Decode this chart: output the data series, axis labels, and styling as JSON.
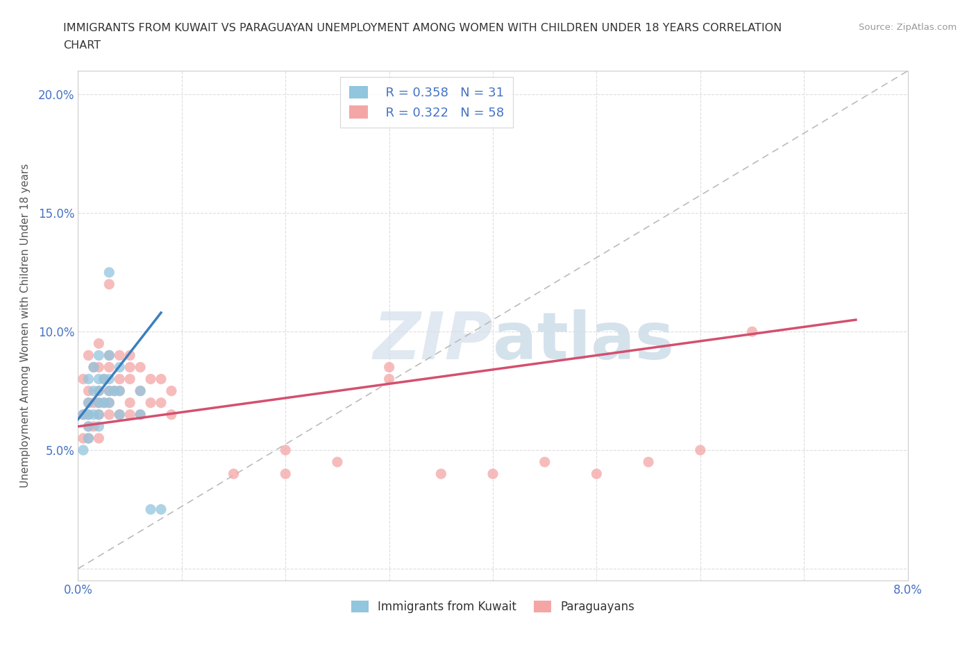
{
  "title": "IMMIGRANTS FROM KUWAIT VS PARAGUAYAN UNEMPLOYMENT AMONG WOMEN WITH CHILDREN UNDER 18 YEARS CORRELATION\nCHART",
  "source": "Source: ZipAtlas.com",
  "ylabel": "Unemployment Among Women with Children Under 18 years",
  "xlim": [
    0.0,
    0.08
  ],
  "ylim": [
    -0.005,
    0.21
  ],
  "xticks": [
    0.0,
    0.01,
    0.02,
    0.03,
    0.04,
    0.05,
    0.06,
    0.07,
    0.08
  ],
  "yticks": [
    0.0,
    0.05,
    0.1,
    0.15,
    0.2
  ],
  "xtick_labels": [
    "0.0%",
    "",
    "",
    "",
    "",
    "",
    "",
    "",
    "8.0%"
  ],
  "ytick_labels": [
    "",
    "5.0%",
    "10.0%",
    "15.0%",
    "20.0%"
  ],
  "legend_blue_r": "R = 0.358",
  "legend_blue_n": "N = 31",
  "legend_pink_r": "R = 0.322",
  "legend_pink_n": "N = 58",
  "series1_color": "#92c5de",
  "series2_color": "#f4a6a6",
  "trendline1_color": "#3a7fbf",
  "trendline2_color": "#d44f6e",
  "background_color": "#ffffff",
  "series1_x": [
    0.0005,
    0.0005,
    0.001,
    0.001,
    0.001,
    0.001,
    0.001,
    0.0015,
    0.0015,
    0.0015,
    0.002,
    0.002,
    0.002,
    0.002,
    0.002,
    0.002,
    0.0025,
    0.0025,
    0.003,
    0.003,
    0.003,
    0.003,
    0.003,
    0.0035,
    0.004,
    0.004,
    0.004,
    0.006,
    0.006,
    0.007,
    0.008
  ],
  "series1_y": [
    0.065,
    0.05,
    0.055,
    0.06,
    0.065,
    0.07,
    0.08,
    0.065,
    0.075,
    0.085,
    0.06,
    0.065,
    0.07,
    0.075,
    0.08,
    0.09,
    0.07,
    0.08,
    0.07,
    0.075,
    0.08,
    0.09,
    0.125,
    0.075,
    0.065,
    0.075,
    0.085,
    0.065,
    0.075,
    0.025,
    0.025
  ],
  "series2_x": [
    0.0005,
    0.0005,
    0.0005,
    0.001,
    0.001,
    0.001,
    0.001,
    0.001,
    0.001,
    0.0015,
    0.0015,
    0.0015,
    0.002,
    0.002,
    0.002,
    0.002,
    0.002,
    0.002,
    0.0025,
    0.0025,
    0.003,
    0.003,
    0.003,
    0.003,
    0.003,
    0.003,
    0.0035,
    0.004,
    0.004,
    0.004,
    0.004,
    0.005,
    0.005,
    0.005,
    0.005,
    0.005,
    0.006,
    0.006,
    0.006,
    0.007,
    0.007,
    0.008,
    0.008,
    0.009,
    0.009,
    0.015,
    0.02,
    0.02,
    0.025,
    0.03,
    0.03,
    0.035,
    0.04,
    0.045,
    0.05,
    0.055,
    0.06,
    0.065
  ],
  "series2_y": [
    0.055,
    0.065,
    0.08,
    0.055,
    0.06,
    0.065,
    0.07,
    0.075,
    0.09,
    0.06,
    0.07,
    0.085,
    0.055,
    0.065,
    0.07,
    0.075,
    0.085,
    0.095,
    0.07,
    0.08,
    0.065,
    0.07,
    0.075,
    0.085,
    0.09,
    0.12,
    0.075,
    0.065,
    0.075,
    0.08,
    0.09,
    0.065,
    0.07,
    0.08,
    0.085,
    0.09,
    0.065,
    0.075,
    0.085,
    0.07,
    0.08,
    0.07,
    0.08,
    0.065,
    0.075,
    0.04,
    0.04,
    0.05,
    0.045,
    0.08,
    0.085,
    0.04,
    0.04,
    0.045,
    0.04,
    0.045,
    0.05,
    0.1
  ],
  "trendline1_x": [
    0.0,
    0.008
  ],
  "trendline1_y": [
    0.063,
    0.108
  ],
  "trendline2_x": [
    0.0,
    0.075
  ],
  "trendline2_y": [
    0.06,
    0.105
  ]
}
